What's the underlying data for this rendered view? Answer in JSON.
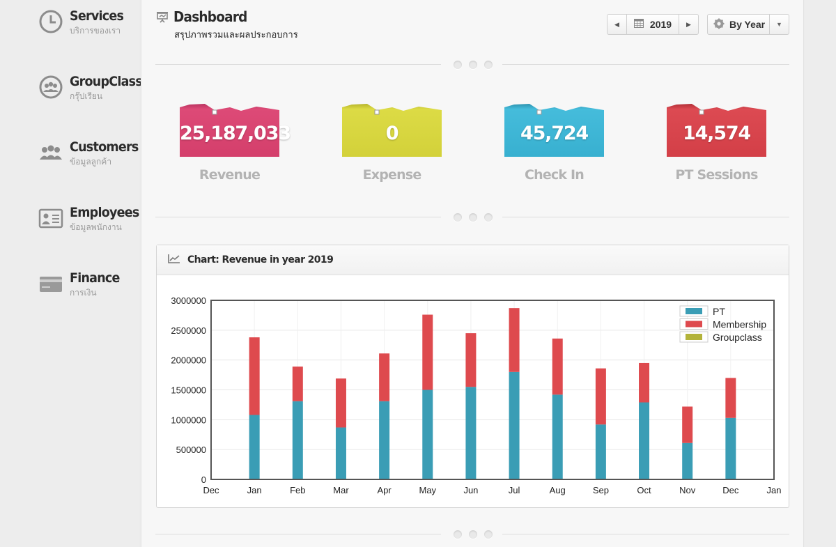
{
  "sidebar": {
    "items": [
      {
        "title": "Services",
        "subtitle": "บริการของเรา",
        "icon": "clock-icon"
      },
      {
        "title": "GroupClass",
        "subtitle": "กรุ๊ปเรียน",
        "icon": "group-icon"
      },
      {
        "title": "Customers",
        "subtitle": "ข้อมูลลูกค้า",
        "icon": "users-icon"
      },
      {
        "title": "Employees",
        "subtitle": "ข้อมูลพนักงาน",
        "icon": "id-card-icon"
      },
      {
        "title": "Finance",
        "subtitle": "การเงิน",
        "icon": "credit-card-icon"
      }
    ]
  },
  "header": {
    "title": "Dashboard",
    "subtitle": "สรุปภาพรวมและผลประกอบการ",
    "year": "2019",
    "mode": "By Year"
  },
  "stats": [
    {
      "label": "Revenue",
      "value": "25,187,033",
      "color": "#d9436e"
    },
    {
      "label": "Expense",
      "value": "0",
      "color": "#d6d43c"
    },
    {
      "label": "Check In",
      "value": "45,724",
      "color": "#3bb4d4"
    },
    {
      "label": "PT Sessions",
      "value": "14,574",
      "color": "#d8424c"
    }
  ],
  "chart": {
    "title": "Chart: Revenue in year 2019"
  },
  "colors": {
    "pt": "#3a9db5",
    "membership": "#de4a4e",
    "groupclass": "#b3b33a"
  },
  "chart_data": {
    "type": "bar",
    "stacked": true,
    "title": "Chart: Revenue in year 2019",
    "x_tick_labels": [
      "Dec",
      "Jan",
      "Feb",
      "Mar",
      "Apr",
      "May",
      "Jun",
      "Jul",
      "Aug",
      "Sep",
      "Oct",
      "Nov",
      "Dec",
      "Jan"
    ],
    "categories": [
      "Jan",
      "Feb",
      "Mar",
      "Apr",
      "May",
      "Jun",
      "Jul",
      "Aug",
      "Sep",
      "Oct",
      "Nov",
      "Dec"
    ],
    "series": [
      {
        "name": "PT",
        "color": "#3a9db5",
        "values": [
          1080000,
          1310000,
          870000,
          1310000,
          1500000,
          1550000,
          1800000,
          1420000,
          920000,
          1290000,
          610000,
          1030000
        ]
      },
      {
        "name": "Membership",
        "color": "#de4a4e",
        "values": [
          1300000,
          580000,
          820000,
          800000,
          1260000,
          900000,
          1070000,
          940000,
          940000,
          660000,
          610000,
          670000
        ]
      },
      {
        "name": "Groupclass",
        "color": "#b3b33a",
        "values": [
          0,
          0,
          0,
          0,
          0,
          0,
          0,
          0,
          0,
          0,
          0,
          0
        ]
      }
    ],
    "ylim": [
      0,
      3000000
    ],
    "yticks": [
      0,
      500000,
      1000000,
      1500000,
      2000000,
      2500000,
      3000000
    ],
    "legend": "top-right",
    "grid": true
  }
}
